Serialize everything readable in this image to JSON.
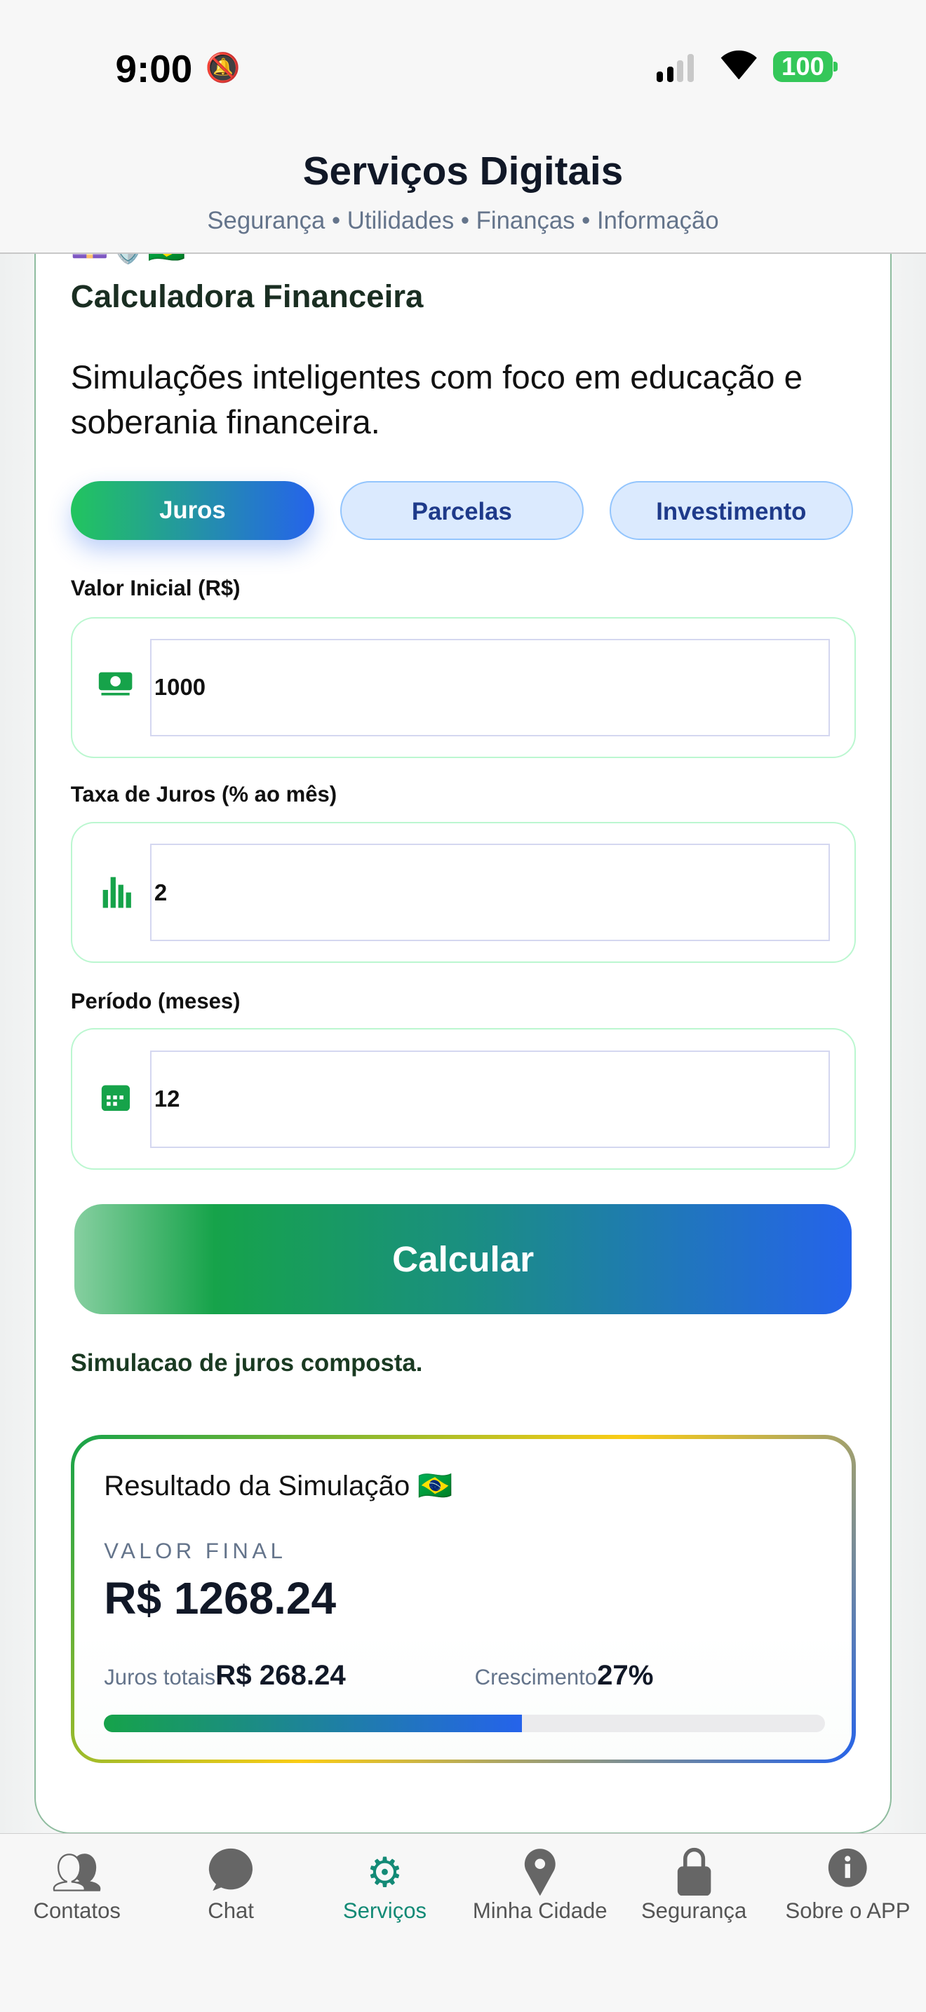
{
  "status_bar": {
    "time": "9:00",
    "battery": "100"
  },
  "header": {
    "title": "Serviços Digitais",
    "subtitle": "Segurança • Utilidades • Finanças • Informação"
  },
  "card": {
    "icons": "💷🛡️🇧🇷",
    "title": "Calculadora Financeira",
    "description": "Simulações inteligentes com foco em educação e soberania financeira."
  },
  "tabs": [
    {
      "label": "Juros",
      "active": true
    },
    {
      "label": "Parcelas",
      "active": false
    },
    {
      "label": "Investimento",
      "active": false
    }
  ],
  "fields": [
    {
      "label": "Valor Inicial (R$)",
      "value": "1000",
      "icon": "money-icon"
    },
    {
      "label": "Taxa de Juros (% ao mês)",
      "value": "2",
      "icon": "bar-chart-icon"
    },
    {
      "label": "Período (meses)",
      "value": "12",
      "icon": "calendar-icon"
    }
  ],
  "calculate_label": "Calcular",
  "note": "Simulacao de juros composta.",
  "result": {
    "title": "Resultado da Simulação 🇧🇷",
    "final_label": "VALOR FINAL",
    "final_value": "R$ 1268.24",
    "interest_label": "Juros totais",
    "interest_value": "R$ 268.24",
    "growth_label": "Crescimento",
    "growth_value": "27%",
    "progress_fraction": 0.58
  },
  "colors": {
    "accent_green": "#16a34a",
    "accent_blue": "#2563eb",
    "nav_active": "#138a76"
  },
  "nav": [
    {
      "label": "Contatos",
      "icon": "contacts-icon"
    },
    {
      "label": "Chat",
      "icon": "chat-icon"
    },
    {
      "label": "Serviços",
      "icon": "gear-icon",
      "active": true
    },
    {
      "label": "Minha Cidade",
      "icon": "map-pin-icon"
    },
    {
      "label": "Segurança",
      "icon": "lock-icon"
    },
    {
      "label": "Sobre o APP",
      "icon": "info-icon"
    }
  ]
}
